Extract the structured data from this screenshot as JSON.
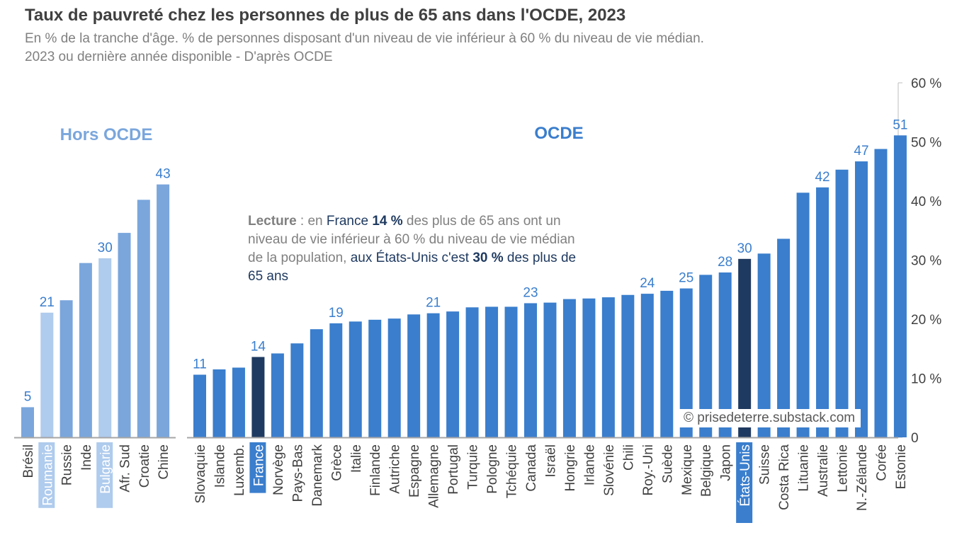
{
  "header": {
    "title": "Taux de pauvreté chez les personnes de plus de 65 ans dans l'OCDE, 2023",
    "subtitle_line1": "En % de la tranche d'âge. % de personnes disposant d'un niveau de vie inférieur à 60 % du niveau de vie médian.",
    "subtitle_line2": "2023 ou dernière année disponible - D'après OCDE"
  },
  "reading_note": {
    "lead": "Lecture",
    "part1": " : en ",
    "france": "France",
    "space": " ",
    "france_value": "14 %",
    "part2": " des plus de 65 ans ont un niveau de vie inférieur à 60 % du niveau de vie médian de la population, ",
    "us": "aux États-Unis c'est",
    "space2": " ",
    "us_value": "30 %",
    "part3": " des plus de 65 ans"
  },
  "watermark": "© prisedeterre.substack.com",
  "colors": {
    "non_oecd": "#7aa6dc",
    "non_oecd_highlight": "#afcbed",
    "oecd": "#3a7ecd",
    "oecd_highlight": "#1f3a60",
    "label_text": "#3a7ecd",
    "axis_text": "#404040"
  },
  "chart_data": {
    "type": "bar",
    "y_axis": {
      "min": 0,
      "max": 60,
      "ticks": [
        "0",
        "10 %",
        "20 %",
        "30 %",
        "40 %",
        "50 %",
        "60 %"
      ],
      "position": "right"
    },
    "groups": [
      {
        "name": "Hors OCDE",
        "categories": [
          "Brésil",
          "Roumanie",
          "Russie",
          "Inde",
          "Bulgarie",
          "Afr. Sud",
          "Croatie",
          "Chine"
        ],
        "values": [
          5.1,
          21.1,
          23.2,
          29.5,
          30.3,
          34.6,
          40.2,
          42.8
        ],
        "highlight": [
          "Roumanie",
          "Bulgarie"
        ],
        "data_labels": {
          "Brésil": "5",
          "Roumanie": "21",
          "Bulgarie": "30",
          "Chine": "43"
        }
      },
      {
        "name": "OCDE",
        "categories": [
          "Slovaquie",
          "Islande",
          "Luxemb.",
          "France",
          "Norvège",
          "Pays-Bas",
          "Danemark",
          "Grèce",
          "Italie",
          "Finlande",
          "Autriche",
          "Espagne",
          "Allemagne",
          "Portugal",
          "Turquie",
          "Pologne",
          "Tchéquie",
          "Canada",
          "Israël",
          "Hongrie",
          "Irlande",
          "Slovénie",
          "Chili",
          "Roy.-Uni",
          "Suède",
          "Mexique",
          "Belgique",
          "Japon",
          "États-Unis",
          "Suisse",
          "Costa Rica",
          "Lituanie",
          "Australie",
          "Lettonie",
          "N.-Zélande",
          "Corée",
          "Estonie"
        ],
        "values": [
          10.6,
          11.5,
          11.8,
          13.6,
          14.2,
          15.9,
          18.3,
          19.3,
          19.6,
          19.9,
          20.1,
          20.8,
          21.0,
          21.3,
          22.0,
          22.1,
          22.1,
          22.7,
          22.8,
          23.4,
          23.5,
          23.7,
          24.1,
          24.3,
          24.8,
          25.2,
          27.5,
          27.9,
          30.2,
          31.1,
          33.6,
          41.4,
          42.3,
          45.3,
          46.7,
          48.8,
          51.1
        ],
        "highlight": [
          "France",
          "États-Unis"
        ],
        "data_labels": {
          "Slovaquie": "11",
          "France": "14",
          "Grèce": "19",
          "Allemagne": "21",
          "Canada": "23",
          "Roy.-Uni": "24",
          "Mexique": "25",
          "Japon": "28",
          "États-Unis": "30",
          "Australie": "42",
          "N.-Zélande": "47",
          "Estonie": "51"
        }
      }
    ]
  }
}
